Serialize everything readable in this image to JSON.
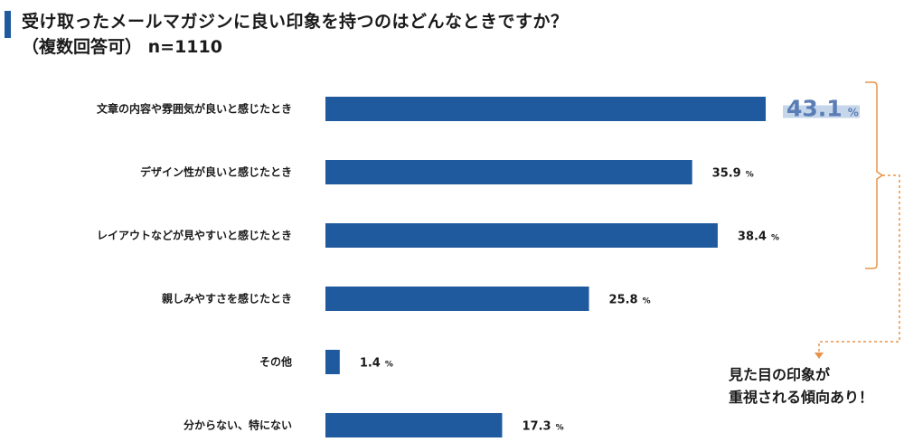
{
  "title": {
    "line1": "受け取ったメールマガジンに良い印象を持つのはどんなときですか？",
    "line2": "（複数回答可）",
    "sample": "n=1110"
  },
  "annotation": {
    "line1": "見た目の印象が",
    "line2": "重視される傾向あり！"
  },
  "colors": {
    "bar": "#1f5a9e",
    "accent": "#1f5a9e",
    "highlight_text": "#5a7db5",
    "highlight_band": "#c5d5ea",
    "bracket": "#e8934a"
  },
  "chart_data": {
    "type": "bar",
    "orientation": "horizontal",
    "categories": [
      "文章の内容や雰囲気が良いと感じたとき",
      "デザイン性が良いと感じたとき",
      "レイアウトなどが見やすいと感じたとき",
      "親しみやすさを感じたとき",
      "その他",
      "分からない、特にない"
    ],
    "values": [
      43.1,
      35.9,
      38.4,
      25.8,
      1.4,
      17.3
    ],
    "value_labels": [
      "43.1",
      "35.9",
      "38.4",
      "25.8",
      "1.4",
      "17.3"
    ],
    "unit": "%",
    "highlight_index": 0,
    "bracket_indices": [
      0,
      2
    ],
    "grid": false
  }
}
